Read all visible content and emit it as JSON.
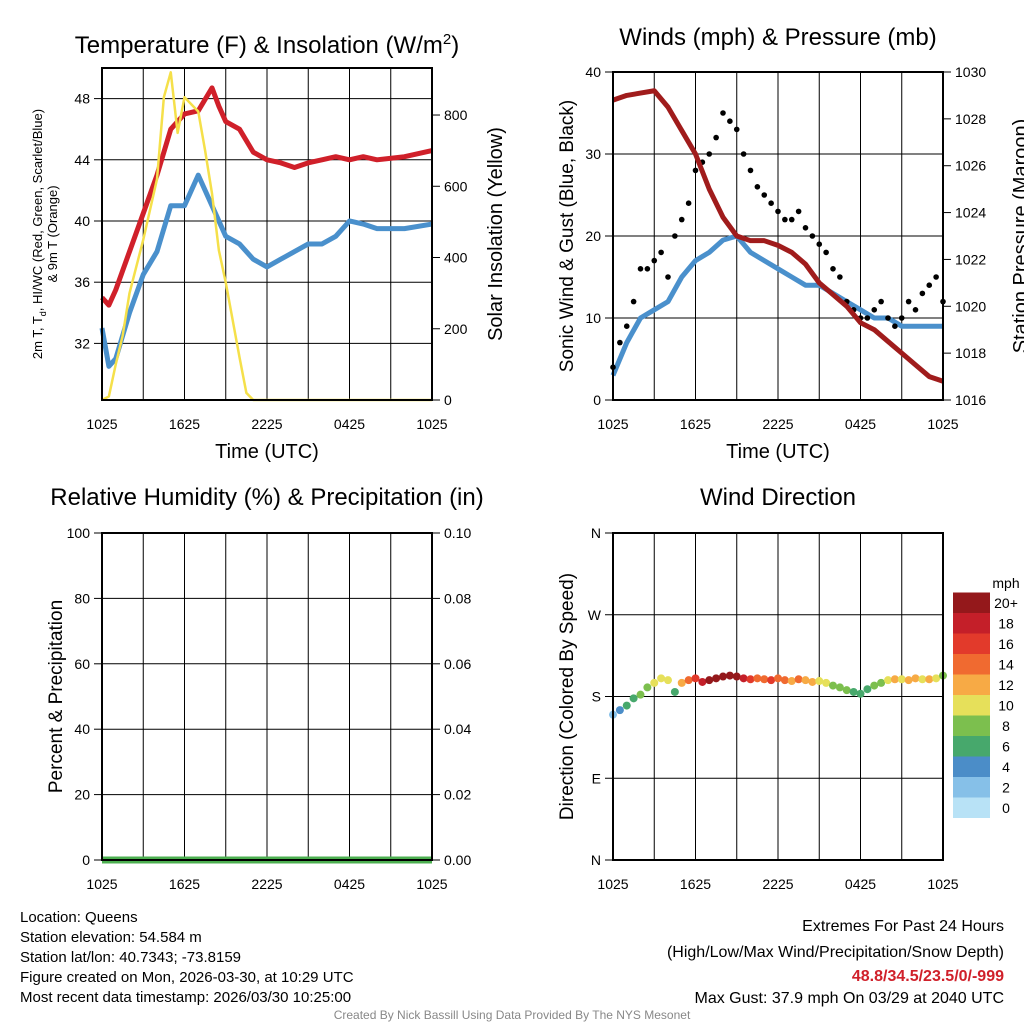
{
  "footer": {
    "location": "Location: Queens",
    "elevation": "Station elevation: 54.584 m",
    "latlon": "Station lat/lon: 40.7343; -73.8159",
    "created": "Figure created on Mon, 2026-03-30, at 10:29 UTC",
    "recent": "Most recent data timestamp: 2026/03/30 10:25:00",
    "extremes_title": "Extremes For Past 24 Hours",
    "extremes_legend": "(High/Low/Max Wind/Precipitation/Snow Depth)",
    "extremes_values": "48.8/34.5/23.5/0/-999",
    "max_gust": "Max Gust: 37.9 mph On 03/29 at 2040 UTC",
    "credit": "Created By Nick Bassill Using Data Provided By The NYS Mesonet",
    "extremes_color": "#d0202a"
  },
  "chart_data": [
    {
      "type": "line",
      "title": "Temperature (F) & Insolation (W/m",
      "title_sup": "2",
      "title_end": ")",
      "xlabel": "Time (UTC)",
      "ylabel_1": "2m T, T",
      "ylabel_sub": "d",
      "ylabel_1b": ", HI/WC (Red, Green, Scarlet/Blue)",
      "ylabel_2": "& 9m T (Orange)",
      "y2label": "Solar Insolation (Yellow)",
      "xlim": [
        0,
        24
      ],
      "xticks": [
        0,
        6,
        12,
        18,
        24
      ],
      "xticklabels": [
        "1025",
        "1625",
        "2225",
        "0425",
        "1025"
      ],
      "ylim": [
        28.3,
        50
      ],
      "yticks": [
        32,
        36,
        40,
        44,
        48
      ],
      "yticklabels": [
        "32",
        "36",
        "40",
        "44",
        "48"
      ],
      "y2lim": [
        0,
        932
      ],
      "y2ticks": [
        0,
        200,
        400,
        600,
        800
      ],
      "y2ticklabels": [
        "0",
        "200",
        "400",
        "600",
        "800"
      ],
      "series": [
        {
          "name": "2m Temperature",
          "axis": "left",
          "color": "#d0202a",
          "style": "line",
          "x": [
            0,
            0.5,
            1,
            2,
            3,
            4,
            5,
            6,
            7,
            8,
            8.5,
            9,
            10,
            11,
            12,
            13,
            14,
            15,
            16,
            17,
            18,
            19,
            20,
            22,
            24
          ],
          "y": [
            35,
            34.5,
            35.5,
            38,
            40.5,
            43,
            46,
            47,
            47.2,
            48.7,
            47.5,
            46.5,
            46,
            44.5,
            44,
            43.8,
            43.5,
            43.8,
            44,
            44.2,
            44,
            44.2,
            44,
            44.2,
            44.6
          ]
        },
        {
          "name": "Dewpoint",
          "axis": "left",
          "color": "#4a90cc",
          "style": "line",
          "x": [
            0,
            0.5,
            1,
            2,
            3,
            4,
            5,
            6,
            7,
            8,
            9,
            10,
            11,
            12,
            13,
            14,
            15,
            16,
            17,
            18,
            19,
            20,
            22,
            24
          ],
          "y": [
            33,
            30.5,
            31,
            34,
            36.5,
            38,
            41,
            41,
            43,
            41,
            39,
            38.5,
            37.5,
            37,
            37.5,
            38,
            38.5,
            38.5,
            39,
            40,
            39.8,
            39.5,
            39.5,
            39.8
          ]
        },
        {
          "name": "Solar Insolation",
          "axis": "right",
          "color": "#f5e04a",
          "style": "line",
          "x": [
            0,
            0.5,
            1,
            1.5,
            2,
            3,
            4,
            4.5,
            5,
            5.5,
            6,
            6.5,
            7,
            7.5,
            8,
            8.5,
            9,
            10,
            10.5,
            11,
            24
          ],
          "y": [
            0,
            10,
            100,
            180,
            300,
            450,
            620,
            850,
            920,
            750,
            850,
            830,
            810,
            700,
            580,
            420,
            330,
            120,
            20,
            0,
            0
          ]
        }
      ]
    },
    {
      "type": "line",
      "title": "Winds (mph) & Pressure (mb)",
      "xlabel": "Time (UTC)",
      "ylabel": "Sonic Wind & Gust (Blue, Black)",
      "y2label": "Station Pressure (Maroon)",
      "xlim": [
        0,
        24
      ],
      "xticks": [
        0,
        6,
        12,
        18,
        24
      ],
      "xticklabels": [
        "1025",
        "1625",
        "2225",
        "0425",
        "1025"
      ],
      "ylim": [
        0,
        40
      ],
      "yticks": [
        0,
        10,
        20,
        30,
        40
      ],
      "yticklabels": [
        "0",
        "10",
        "20",
        "30",
        "40"
      ],
      "y2lim": [
        1016,
        1030
      ],
      "y2ticks": [
        1016,
        1018,
        1020,
        1022,
        1024,
        1026,
        1028,
        1030
      ],
      "y2ticklabels": [
        "1016",
        "1018",
        "1020",
        "1022",
        "1024",
        "1026",
        "1028",
        "1030"
      ],
      "series": [
        {
          "name": "Sonic Wind",
          "axis": "left",
          "color": "#4a90cc",
          "style": "line",
          "x": [
            0,
            1,
            2,
            3,
            4,
            5,
            6,
            7,
            8,
            9,
            10,
            11,
            12,
            13,
            14,
            15,
            16,
            17,
            18,
            19,
            20,
            21,
            22,
            23,
            24
          ],
          "y": [
            3,
            7,
            10,
            11,
            12,
            15,
            17,
            18,
            19.5,
            20,
            18,
            17,
            16,
            15,
            14,
            14,
            13,
            12,
            11,
            10,
            10,
            9,
            9,
            9,
            9
          ]
        },
        {
          "name": "Gust",
          "axis": "left",
          "color": "#000000",
          "style": "dots",
          "x": [
            0,
            0.5,
            1,
            1.5,
            2,
            2.5,
            3,
            3.5,
            4,
            4.5,
            5,
            5.5,
            6,
            6.5,
            7,
            7.5,
            8,
            8.5,
            9,
            9.5,
            10,
            10.5,
            11,
            11.5,
            12,
            12.5,
            13,
            13.5,
            14,
            14.5,
            15,
            15.5,
            16,
            16.5,
            17,
            17.5,
            18,
            18.5,
            19,
            19.5,
            20,
            20.5,
            21,
            21.5,
            22,
            22.5,
            23,
            23.5,
            24
          ],
          "y": [
            4,
            7,
            9,
            12,
            16,
            16,
            17,
            18,
            15,
            20,
            22,
            24,
            28,
            29,
            30,
            32,
            35,
            34,
            33,
            30,
            28,
            26,
            25,
            24,
            23,
            22,
            22,
            23,
            21,
            20,
            19,
            18,
            16,
            15,
            12,
            11,
            10,
            10,
            11,
            12,
            10,
            9,
            10,
            12,
            11,
            13,
            14,
            15,
            12
          ]
        },
        {
          "name": "Station Pressure",
          "axis": "right",
          "color": "#a01c1c",
          "style": "line",
          "x": [
            0,
            1,
            2,
            3,
            4,
            5,
            6,
            7,
            8,
            9,
            10,
            11,
            12,
            13,
            14,
            15,
            16,
            17,
            18,
            19,
            20,
            21,
            22,
            23,
            24
          ],
          "y": [
            1028.8,
            1029,
            1029.1,
            1029.2,
            1028.5,
            1027.5,
            1026.5,
            1025,
            1023.8,
            1023,
            1022.8,
            1022.8,
            1022.6,
            1022.3,
            1021.8,
            1021,
            1020.5,
            1020,
            1019.3,
            1019,
            1018.5,
            1018,
            1017.5,
            1017,
            1016.8
          ]
        }
      ]
    },
    {
      "type": "line",
      "title": "Relative Humidity (%) & Precipitation (in)",
      "xlabel": "",
      "ylabel": "Percent & Precipitation",
      "xlim": [
        0,
        24
      ],
      "xticks": [
        0,
        6,
        12,
        18,
        24
      ],
      "xticklabels": [
        "1025",
        "1625",
        "2225",
        "0425",
        "1025"
      ],
      "ylim": [
        0,
        100
      ],
      "yticks": [
        0,
        20,
        40,
        60,
        80,
        100
      ],
      "yticklabels": [
        "0",
        "20",
        "40",
        "60",
        "80",
        "100"
      ],
      "y2lim": [
        0,
        0.1
      ],
      "y2ticks": [
        0,
        0.02,
        0.04,
        0.06,
        0.08,
        0.1
      ],
      "y2ticklabels": [
        "0.00",
        "0.02",
        "0.04",
        "0.06",
        "0.08",
        "0.10"
      ],
      "series": [
        {
          "name": "Precipitation",
          "axis": "right",
          "color": "#4caf50",
          "style": "line",
          "x": [
            0,
            24
          ],
          "y": [
            0,
            0
          ]
        }
      ]
    },
    {
      "type": "scatter",
      "title": "Wind Direction",
      "xlabel": "",
      "ylabel": "Direction (Colored By Speed)",
      "xlim": [
        0,
        24
      ],
      "xticks": [
        0,
        6,
        12,
        18,
        24
      ],
      "xticklabels": [
        "1025",
        "1625",
        "2225",
        "0425",
        "1025"
      ],
      "ylim": [
        0,
        360
      ],
      "yticks": [
        0,
        90,
        180,
        270,
        360
      ],
      "yticklabels": [
        "N",
        "E",
        "S",
        "W",
        "N"
      ],
      "colorbar": {
        "title": "mph",
        "labels": [
          "0",
          "2",
          "4",
          "6",
          "8",
          "10",
          "12",
          "14",
          "16",
          "18",
          "20+"
        ],
        "colors": [
          "#b8e2f6",
          "#86c0e8",
          "#4b8dc8",
          "#47a86c",
          "#7cbf4e",
          "#e6e05a",
          "#f7aa45",
          "#f06a30",
          "#e23a2b",
          "#c41f29",
          "#94181b"
        ]
      },
      "points": {
        "x": [
          0,
          0.5,
          1,
          1.5,
          2,
          2.5,
          3,
          3.5,
          4,
          4.5,
          5,
          5.5,
          6,
          6.5,
          7,
          7.5,
          8,
          8.5,
          9,
          9.5,
          10,
          10.5,
          11,
          11.5,
          12,
          12.5,
          13,
          13.5,
          14,
          14.5,
          15,
          15.5,
          16,
          16.5,
          17,
          17.5,
          18,
          18.5,
          19,
          19.5,
          20,
          20.5,
          21,
          21.5,
          22,
          22.5,
          23,
          23.5,
          24
        ],
        "direction": [
          160,
          165,
          170,
          178,
          182,
          190,
          195,
          200,
          198,
          185,
          195,
          198,
          200,
          196,
          198,
          200,
          202,
          203,
          202,
          200,
          199,
          200,
          199,
          198,
          200,
          198,
          197,
          199,
          198,
          196,
          197,
          195,
          192,
          190,
          187,
          185,
          183,
          188,
          192,
          195,
          198,
          199,
          199,
          198,
          200,
          199,
          199,
          200,
          203
        ],
        "speed": [
          3,
          4,
          6,
          6,
          8,
          9,
          10,
          11,
          10,
          7,
          12,
          14,
          16,
          18,
          20,
          20,
          21,
          21,
          20,
          18,
          16,
          15,
          14,
          16,
          15,
          14,
          13,
          14,
          12,
          12,
          11,
          10,
          8,
          8,
          8,
          7,
          6,
          7,
          8,
          9,
          10,
          12,
          11,
          12,
          12,
          11,
          12,
          10,
          8
        ]
      }
    }
  ]
}
